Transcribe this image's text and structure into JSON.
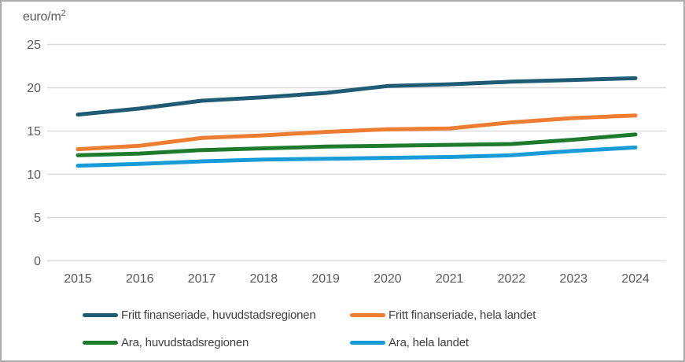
{
  "chart_data": {
    "type": "line",
    "unit_base": "euro/m",
    "unit_sup": "2",
    "x": [
      2015,
      2016,
      2017,
      2018,
      2019,
      2020,
      2021,
      2022,
      2023,
      2024
    ],
    "series": [
      {
        "name": "Fritt finanseriade, huvudstadsregionen",
        "color": "#1f5c73",
        "values": [
          16.9,
          17.6,
          18.5,
          18.9,
          19.4,
          20.2,
          20.4,
          20.7,
          20.9,
          21.1
        ]
      },
      {
        "name": "Fritt finanseriade, hela landet",
        "color": "#ed7d31",
        "values": [
          12.9,
          13.3,
          14.2,
          14.5,
          14.9,
          15.2,
          15.3,
          16.0,
          16.5,
          16.8
        ]
      },
      {
        "name": "Ara, huvudstadsregionen",
        "color": "#1e7b2e",
        "values": [
          12.2,
          12.4,
          12.8,
          13.0,
          13.2,
          13.3,
          13.4,
          13.5,
          14.0,
          14.6
        ]
      },
      {
        "name": "Ara, hela landet",
        "color": "#189cd8",
        "values": [
          11.0,
          11.2,
          11.5,
          11.7,
          11.8,
          11.9,
          12.0,
          12.2,
          12.7,
          13.1
        ]
      }
    ],
    "ylim": [
      0,
      25
    ],
    "yticks": [
      0,
      5,
      10,
      15,
      20,
      25
    ],
    "grid": true,
    "legend_position": "bottom",
    "xlabel": "",
    "ylabel": "euro/m2",
    "colors": {
      "gridline": "#d9d9d9",
      "axis_text": "#595959",
      "legend_text": "#404040",
      "frame_border": "#ababab",
      "background": "#ffffff"
    }
  }
}
